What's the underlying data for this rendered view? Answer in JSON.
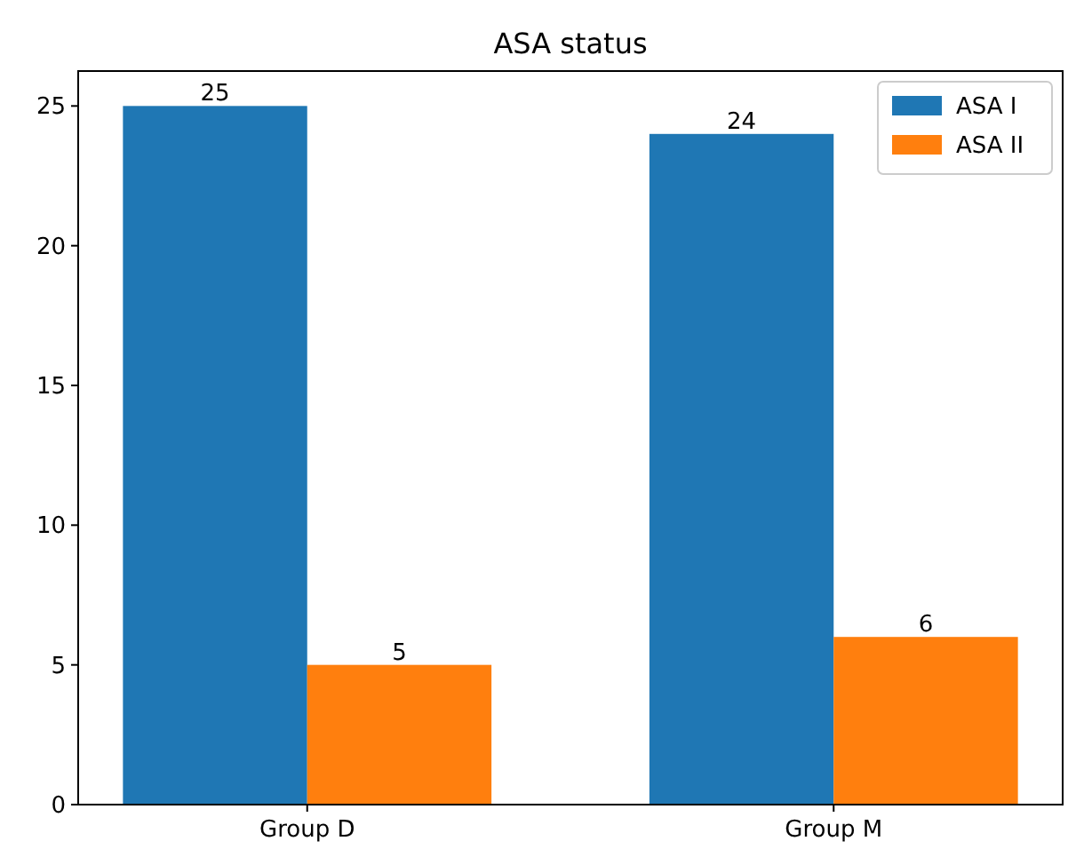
{
  "chart_data": {
    "type": "bar",
    "title": "ASA status",
    "categories": [
      "Group D",
      "Group M"
    ],
    "series": [
      {
        "name": "ASA I",
        "color": "#1f77b4",
        "values": [
          25,
          24
        ]
      },
      {
        "name": "ASA II",
        "color": "#ff7f0e",
        "values": [
          5,
          6
        ]
      }
    ],
    "ylim": [
      0,
      26.25
    ],
    "yticks": [
      0,
      5,
      10,
      15,
      20,
      25
    ],
    "data_labels": true,
    "legend": "top right",
    "grid": false
  }
}
